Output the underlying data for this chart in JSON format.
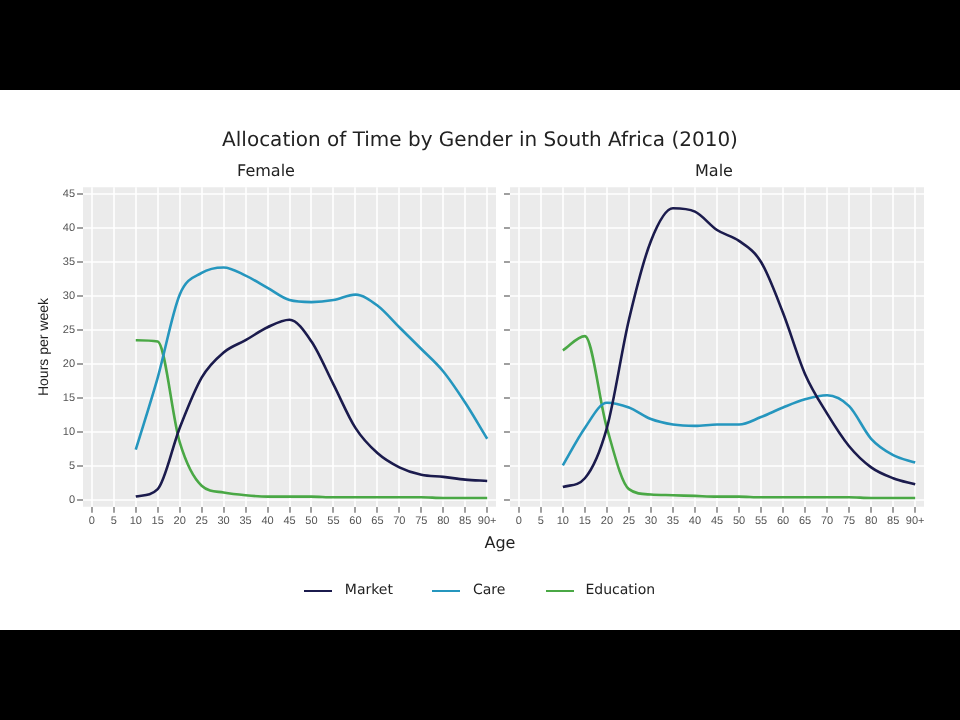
{
  "chart_data": [
    {
      "type": "line",
      "title": "Allocation of Time by Gender in South Africa (2010)",
      "subtitle": "Female",
      "xlabel": "Age",
      "ylabel": "Hours per week",
      "x": [
        10,
        15,
        20,
        25,
        30,
        35,
        40,
        45,
        50,
        55,
        60,
        65,
        70,
        75,
        80,
        85,
        90
      ],
      "series": [
        {
          "name": "Market",
          "color": "#1b1b4d",
          "values": [
            0.5,
            1.6,
            10.6,
            18,
            21.7,
            23.5,
            25.4,
            26.5,
            23.3,
            17,
            10.6,
            6.9,
            4.8,
            3.7,
            3.4,
            3.0,
            2.8
          ]
        },
        {
          "name": "Care",
          "color": "#2596be",
          "values": [
            7.4,
            18,
            30.2,
            33.4,
            34.2,
            33,
            31.2,
            29.4,
            29.1,
            29.4,
            30.2,
            28.6,
            25.4,
            22.2,
            18.9,
            14.3,
            9
          ]
        },
        {
          "name": "Education",
          "color": "#4aa845",
          "values": [
            23.5,
            23.3,
            8.5,
            2.1,
            1.1,
            0.7,
            0.5,
            0.5,
            0.5,
            0.4,
            0.4,
            0.4,
            0.4,
            0.4,
            0.3,
            0.3,
            0.3
          ]
        }
      ],
      "xlim": [
        -2,
        92
      ],
      "xticks": [
        0,
        5,
        10,
        15,
        20,
        25,
        30,
        35,
        40,
        45,
        50,
        55,
        60,
        65,
        70,
        75,
        80,
        85,
        {
          "value": 90,
          "label": "90+"
        }
      ],
      "ylim": [
        -1,
        46
      ],
      "yticks": [
        0,
        5,
        10,
        15,
        20,
        25,
        30,
        35,
        40,
        45
      ],
      "grid": true,
      "legend": "bottom",
      "marker": "none",
      "line_style": "solid"
    },
    {
      "type": "line",
      "subtitle": "Male",
      "x": [
        10,
        15,
        20,
        25,
        30,
        35,
        40,
        45,
        50,
        55,
        60,
        65,
        70,
        75,
        80,
        85,
        90
      ],
      "series": [
        {
          "color": "#1b1b4d",
          "values": [
            1.9,
            3.2,
            10.6,
            26.5,
            38.1,
            42.9,
            42.4,
            39.7,
            38.1,
            35,
            27.5,
            18.5,
            12.7,
            7.9,
            4.8,
            3.2,
            2.3
          ]
        },
        {
          "color": "#2596be",
          "values": [
            5.1,
            10.6,
            14.3,
            13.6,
            11.9,
            11.1,
            10.9,
            11.1,
            11.1,
            12.2,
            13.6,
            14.8,
            15.4,
            13.8,
            9,
            6.6,
            5.5
          ]
        },
        {
          "color": "#4aa845",
          "values": [
            22,
            24.1,
            10.6,
            1.6,
            0.8,
            0.7,
            0.6,
            0.5,
            0.5,
            0.4,
            0.4,
            0.4,
            0.4,
            0.4,
            0.3,
            0.3,
            0.3
          ]
        }
      ],
      "xlim": [
        -2,
        92
      ],
      "xticks": [
        0,
        5,
        10,
        15,
        20,
        25,
        30,
        35,
        40,
        45,
        50,
        55,
        60,
        65,
        70,
        75,
        80,
        85,
        {
          "value": 90,
          "label": "90+"
        }
      ],
      "ylim": [
        -1,
        46
      ],
      "yticks": [
        0,
        5,
        10,
        15,
        20,
        25,
        30,
        35,
        40,
        45
      ],
      "tick_labels": "x",
      "grid": true,
      "marker": "none",
      "line_style": "solid"
    }
  ]
}
